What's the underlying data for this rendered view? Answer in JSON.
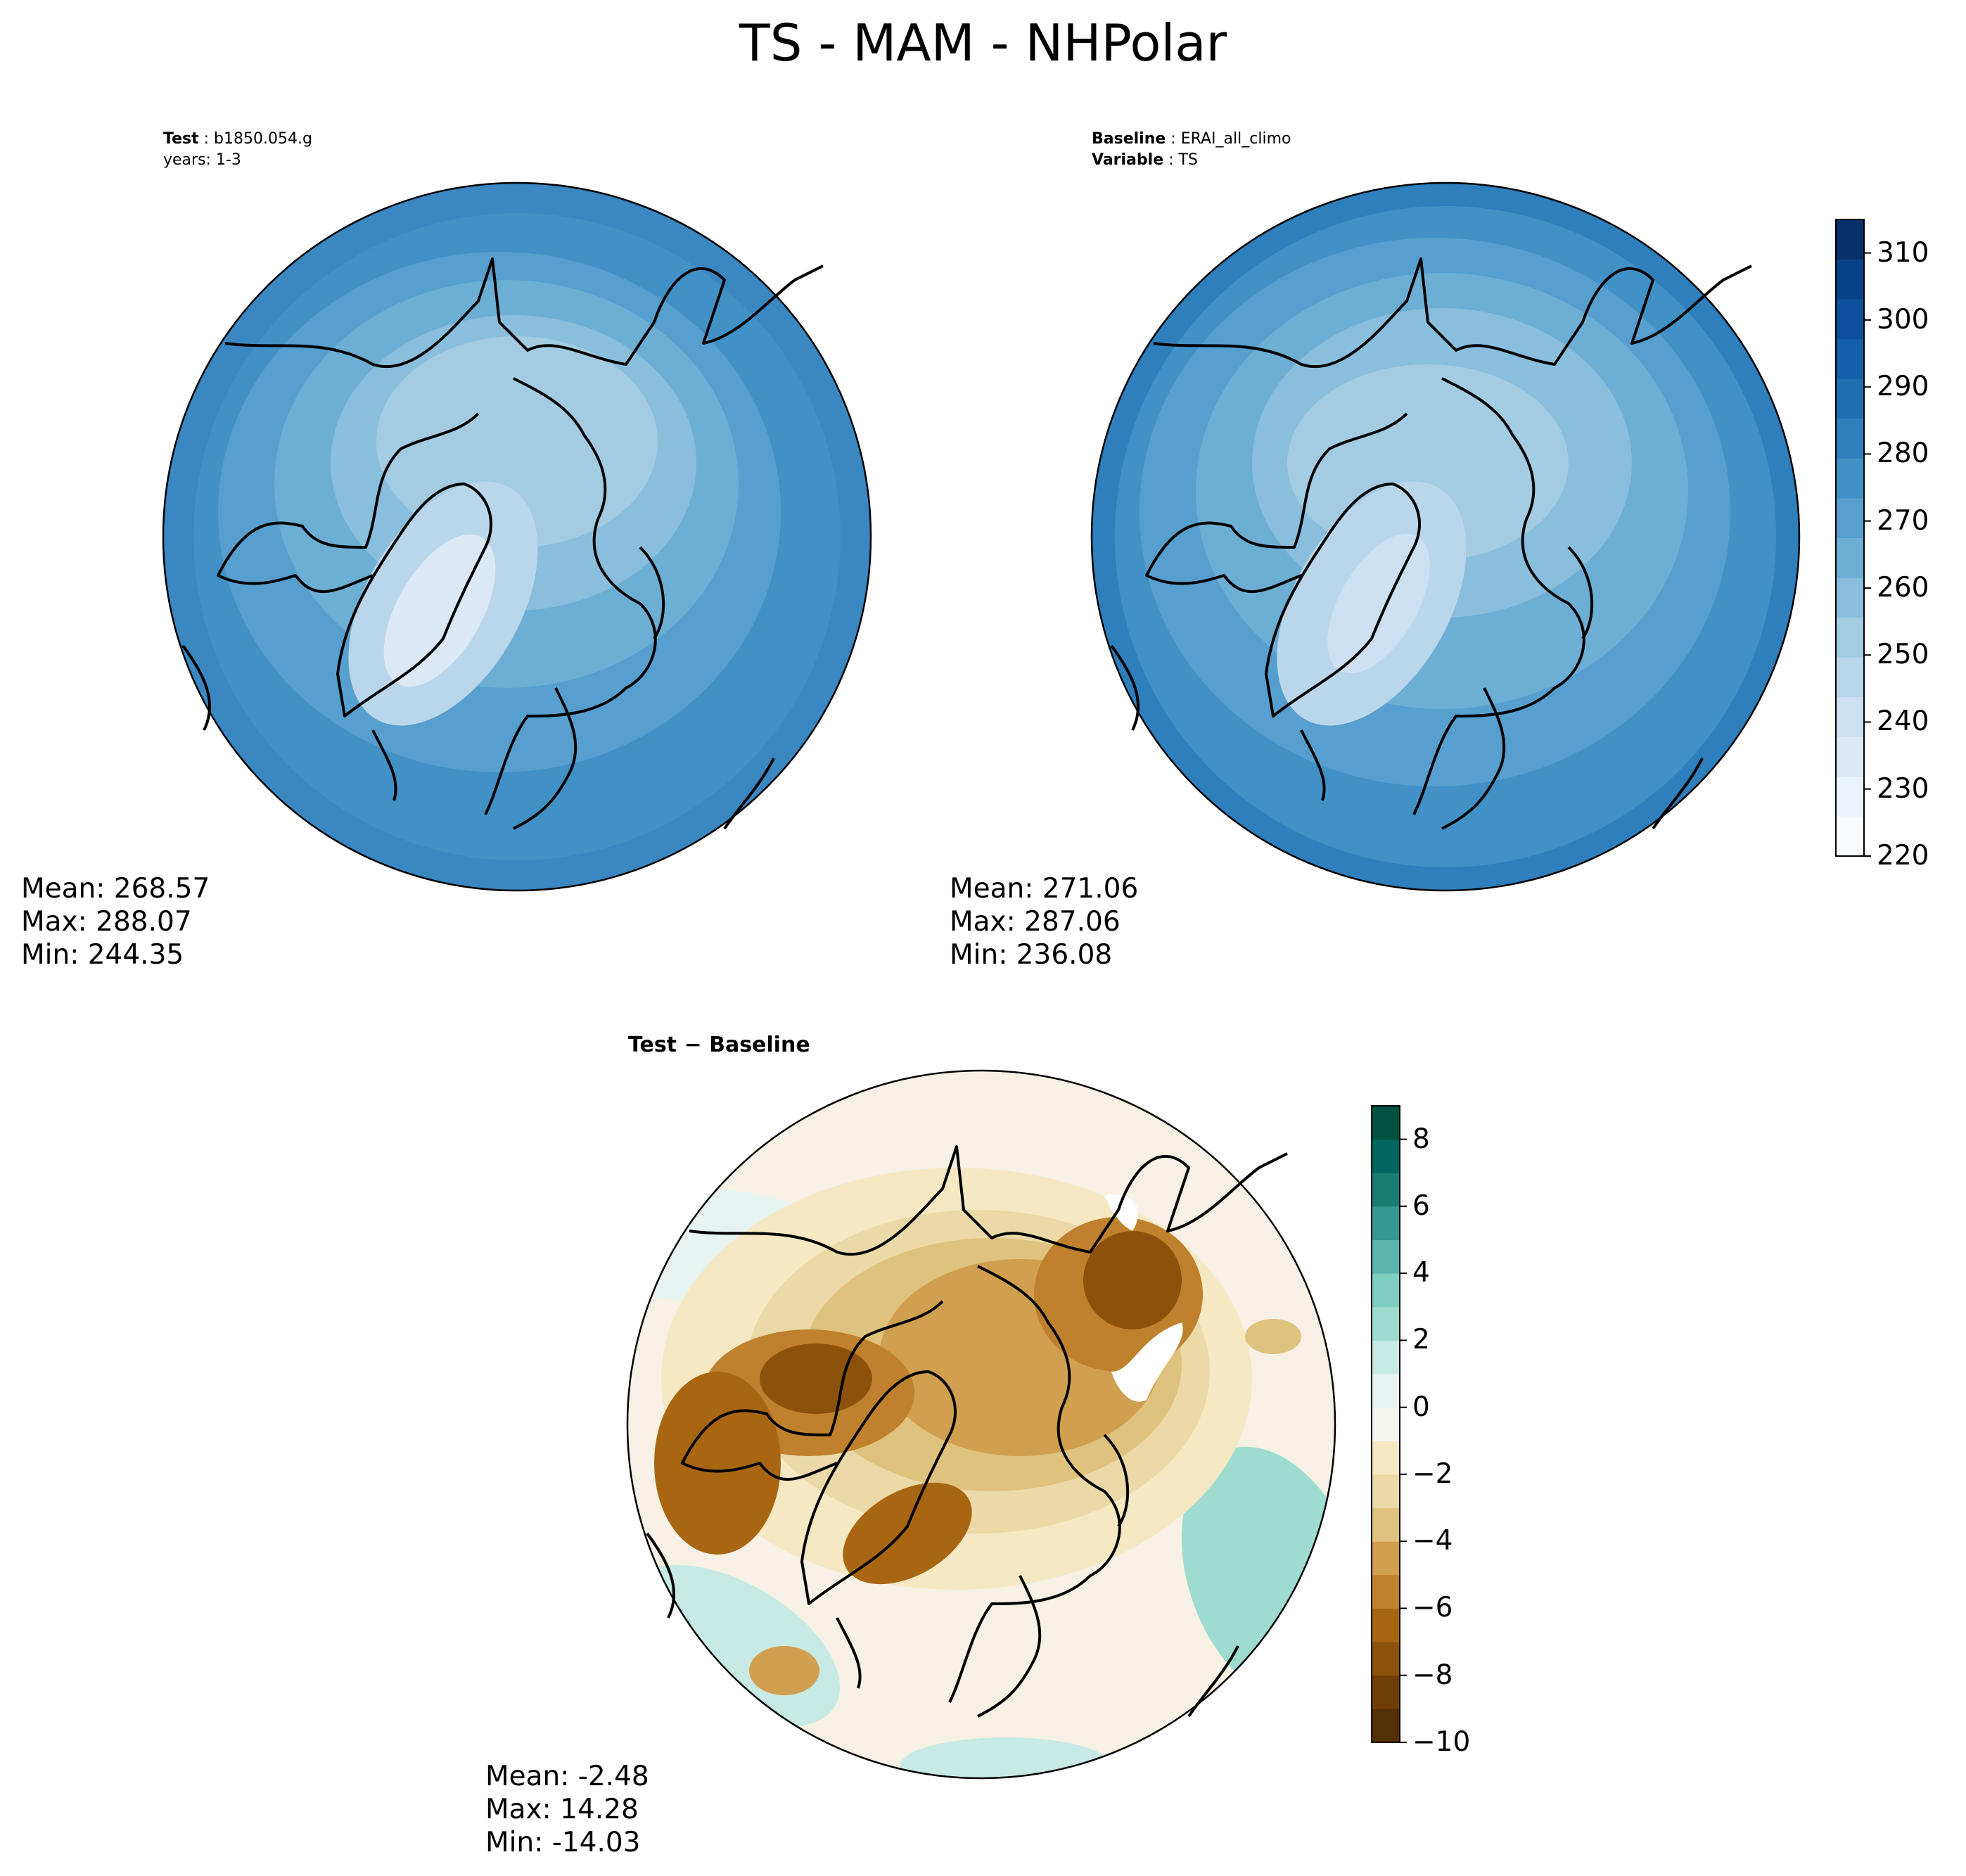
{
  "figure": {
    "title": "TS - MAM - NHPolar"
  },
  "panels": {
    "test": {
      "label_key": "Test",
      "label_value": "b1850.054.g",
      "subline": "years: 1-3",
      "stats": {
        "mean": "Mean: 268.57",
        "max": "Max: 288.07",
        "min": "Min: 244.35"
      }
    },
    "baseline": {
      "label_key": "Baseline",
      "label_value": "ERAI_all_climo",
      "var_key": "Variable",
      "var_value": "TS",
      "stats": {
        "mean": "Mean: 271.06",
        "max": "Max: 287.06",
        "min": "Min: 236.08"
      }
    },
    "diff": {
      "title_a": "Test",
      "title_sep": "−",
      "title_b": "Baseline",
      "stats": {
        "mean": "Mean: -2.48",
        "max": "Max: 14.28",
        "min": "Min: -14.03"
      }
    }
  },
  "colors": {
    "blues": [
      "#f7fbff",
      "#eaf3fb",
      "#dbe9f6",
      "#cde0f1",
      "#bad6eb",
      "#a3cce3",
      "#89bedc",
      "#6daed5",
      "#569fcf",
      "#4191c6",
      "#2f7fbd",
      "#1f6eb2",
      "#1360a8",
      "#0a509b",
      "#08438a",
      "#08306b"
    ],
    "brbg": [
      "#543005",
      "#6f3e07",
      "#8c510a",
      "#a86613",
      "#bf812d",
      "#d09f4f",
      "#dfc27d",
      "#ebd9a7",
      "#f6e8c3",
      "#f5f5f0",
      "#e6f3f1",
      "#c7eae5",
      "#9edcd0",
      "#80cdc1",
      "#5ab4ac",
      "#35978f",
      "#1b7d72",
      "#01665e",
      "#00503f"
    ]
  },
  "chart_data": [
    {
      "type": "heatmap",
      "panel": "test",
      "projection": "north-polar-stereographic",
      "variable": "TS",
      "colormap": "Blues",
      "levels": [
        220,
        230,
        240,
        250,
        260,
        270,
        280,
        290,
        300,
        310
      ],
      "mean": 268.57,
      "max": 288.07,
      "min": 244.35
    },
    {
      "type": "heatmap",
      "panel": "baseline",
      "projection": "north-polar-stereographic",
      "variable": "TS",
      "colormap": "Blues",
      "levels": [
        220,
        230,
        240,
        250,
        260,
        270,
        280,
        290,
        300,
        310
      ],
      "mean": 271.06,
      "max": 287.06,
      "min": 236.08
    },
    {
      "type": "heatmap",
      "panel": "diff",
      "projection": "north-polar-stereographic",
      "colormap": "BrBG",
      "levels": [
        -10,
        -8,
        -6,
        -4,
        -2,
        0,
        2,
        4,
        6,
        8
      ],
      "mean": -2.48,
      "max": 14.28,
      "min": -14.03
    }
  ],
  "colorbars": {
    "top": {
      "ticks": [
        "310",
        "300",
        "290",
        "280",
        "270",
        "260",
        "250",
        "240",
        "230",
        "220"
      ],
      "vmin": 220,
      "vmax": 315
    },
    "bottom": {
      "ticks": [
        "8",
        "6",
        "4",
        "2",
        "0",
        "−2",
        "−4",
        "−6",
        "−8",
        "−10"
      ],
      "tick_values": [
        8,
        6,
        4,
        2,
        0,
        -2,
        -4,
        -6,
        -8,
        -10
      ],
      "vmin": -10,
      "vmax": 9
    }
  }
}
